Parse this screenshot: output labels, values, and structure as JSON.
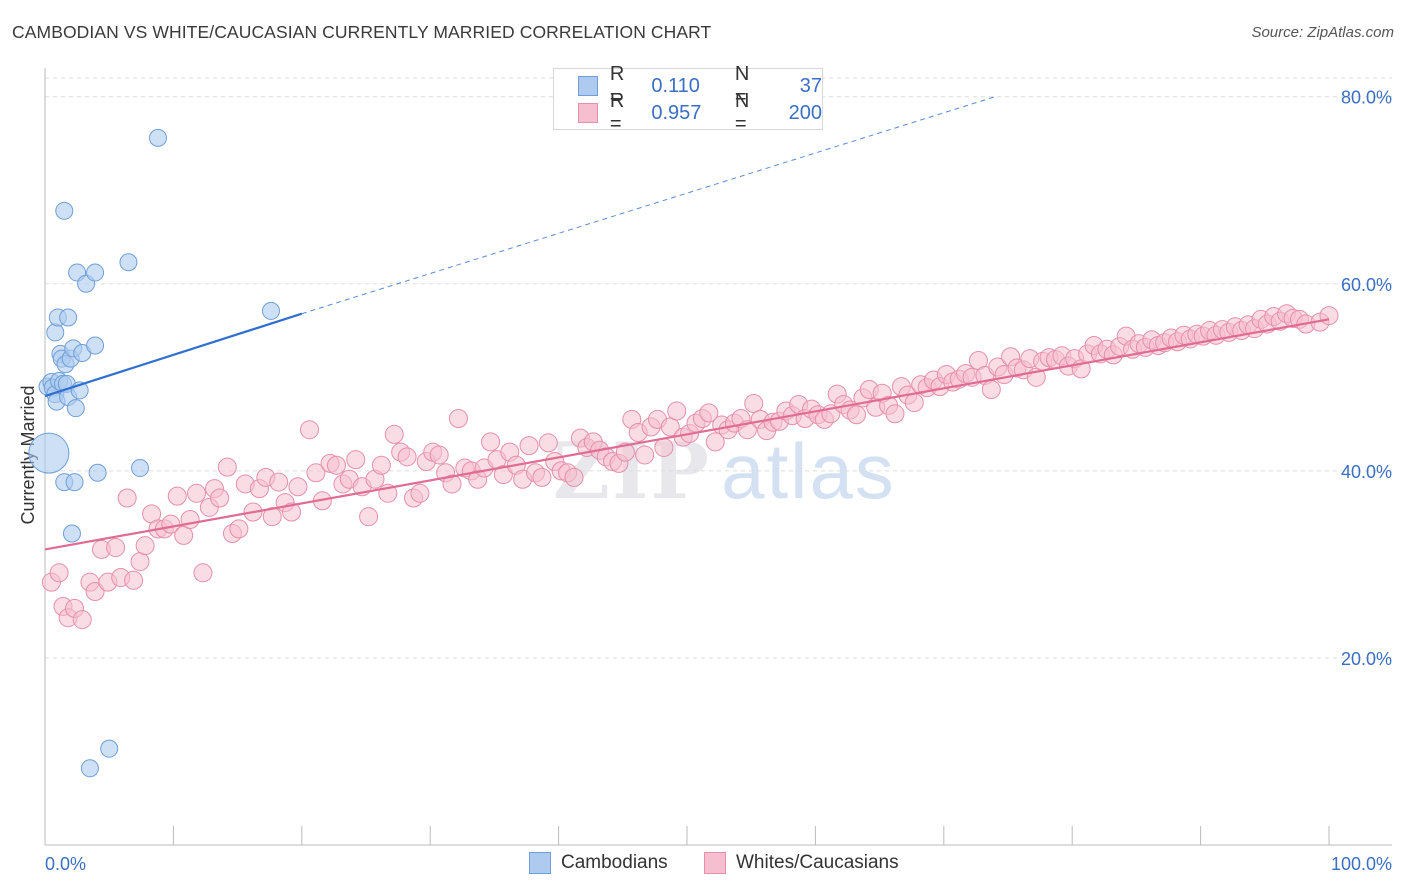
{
  "header": {
    "title": "CAMBODIAN VS WHITE/CAUCASIAN CURRENTLY MARRIED CORRELATION CHART",
    "source": "Source: ZipAtlas.com"
  },
  "watermark": {
    "zip": "ZIP",
    "atlas": "atlas"
  },
  "legend": {
    "r_label": "R =",
    "n_label": "N =",
    "rows": [
      {
        "r": "0.110",
        "n": "37",
        "color": "#aecbef",
        "border": "#6f9fd8",
        "text_color": "#3b6fc4"
      },
      {
        "r": "0.957",
        "n": "200",
        "color": "#f6bfd0",
        "border": "#e68fab",
        "text_color": "#3b6fc4"
      }
    ]
  },
  "bottom_legend": [
    {
      "label": "Cambodians",
      "color": "#aecbef",
      "border": "#6f9fd8"
    },
    {
      "label": "Whites/Caucasians",
      "color": "#f6bfd0",
      "border": "#e68fab"
    }
  ],
  "chart_data": {
    "type": "scatter",
    "title": "CAMBODIAN VS WHITE/CAUCASIAN CURRENTLY MARRIED CORRELATION CHART",
    "xlabel": "",
    "ylabel": "Currently Married",
    "xlim": [
      0,
      100
    ],
    "ylim": [
      0,
      82
    ],
    "x_tick_labels": [
      "0.0%",
      "100.0%"
    ],
    "y_ticks": [
      20,
      40,
      60,
      80
    ],
    "y_tick_labels": [
      "20.0%",
      "40.0%",
      "60.0%",
      "80.0%"
    ],
    "grid": true,
    "series": [
      {
        "name": "Cambodians",
        "color": "#aecbef",
        "stroke": "#6f9fd8",
        "line_color": "#2f6fcf",
        "trend": {
          "x0": 0,
          "y0": 48.0,
          "x1": 20,
          "y1": 56.8,
          "dash_to_x": 74,
          "dash_to_y": 80
        },
        "points": [
          [
            0.2,
            49.0,
            1
          ],
          [
            0.3,
            41.9,
            3
          ],
          [
            0.5,
            49.5,
            1
          ],
          [
            0.6,
            48.9,
            1
          ],
          [
            0.8,
            48.2,
            1
          ],
          [
            0.8,
            54.8,
            1
          ],
          [
            0.9,
            47.4,
            1
          ],
          [
            1.0,
            56.4,
            1
          ],
          [
            1.1,
            49.6,
            1
          ],
          [
            1.2,
            52.5,
            1
          ],
          [
            1.3,
            52.0,
            1
          ],
          [
            1.4,
            49.3,
            1
          ],
          [
            1.5,
            38.8,
            1
          ],
          [
            1.5,
            67.8,
            1
          ],
          [
            1.6,
            51.4,
            1
          ],
          [
            1.7,
            49.3,
            1
          ],
          [
            1.8,
            47.9,
            1
          ],
          [
            1.8,
            56.4,
            1
          ],
          [
            2.0,
            52.0,
            1
          ],
          [
            2.1,
            33.3,
            1
          ],
          [
            2.2,
            53.1,
            1
          ],
          [
            2.3,
            38.8,
            1
          ],
          [
            2.4,
            46.7,
            1
          ],
          [
            2.5,
            61.2,
            1
          ],
          [
            2.7,
            48.6,
            1
          ],
          [
            2.9,
            52.6,
            1
          ],
          [
            3.2,
            60.0,
            1
          ],
          [
            3.5,
            8.2,
            1
          ],
          [
            3.9,
            53.4,
            1
          ],
          [
            3.9,
            61.2,
            1
          ],
          [
            4.1,
            39.8,
            1
          ],
          [
            5.0,
            10.3,
            1
          ],
          [
            6.5,
            62.3,
            1
          ],
          [
            7.4,
            40.3,
            1
          ],
          [
            8.8,
            75.6,
            1
          ],
          [
            17.6,
            57.1,
            1
          ]
        ]
      },
      {
        "name": "Whites/Caucasians",
        "color": "#f6bfd0",
        "stroke": "#e68fab",
        "line_color": "#e06c94",
        "trend": {
          "x0": 0,
          "y0": 31.6,
          "x1": 100,
          "y1": 56.2
        },
        "points": [
          [
            0.5,
            28.1
          ],
          [
            1.1,
            29.1
          ],
          [
            1.4,
            25.5
          ],
          [
            1.8,
            24.3
          ],
          [
            2.3,
            25.3
          ],
          [
            2.9,
            24.1
          ],
          [
            3.5,
            28.1
          ],
          [
            3.9,
            27.1
          ],
          [
            4.4,
            31.6
          ],
          [
            4.9,
            28.1
          ],
          [
            5.5,
            31.8
          ],
          [
            5.9,
            28.6
          ],
          [
            6.4,
            37.1
          ],
          [
            6.9,
            28.3
          ],
          [
            7.4,
            30.3
          ],
          [
            7.8,
            32.0
          ],
          [
            8.3,
            35.4
          ],
          [
            8.8,
            33.8
          ],
          [
            9.3,
            33.8
          ],
          [
            9.8,
            34.3
          ],
          [
            10.3,
            37.3
          ],
          [
            10.8,
            33.1
          ],
          [
            11.3,
            34.8
          ],
          [
            11.8,
            37.6
          ],
          [
            12.3,
            29.1
          ],
          [
            12.8,
            36.1
          ],
          [
            13.2,
            38.1
          ],
          [
            13.6,
            37.1
          ],
          [
            14.2,
            40.4
          ],
          [
            14.6,
            33.3
          ],
          [
            15.1,
            33.8
          ],
          [
            15.6,
            38.6
          ],
          [
            16.2,
            35.6
          ],
          [
            16.7,
            38.1
          ],
          [
            17.2,
            39.3
          ],
          [
            17.7,
            35.1
          ],
          [
            18.2,
            38.8
          ],
          [
            18.7,
            36.6
          ],
          [
            19.2,
            35.6
          ],
          [
            19.7,
            38.3
          ],
          [
            20.6,
            44.4
          ],
          [
            21.1,
            39.8
          ],
          [
            21.6,
            36.8
          ],
          [
            22.2,
            40.8
          ],
          [
            22.7,
            40.6
          ],
          [
            23.2,
            38.6
          ],
          [
            23.7,
            39.1
          ],
          [
            24.2,
            41.2
          ],
          [
            24.7,
            38.3
          ],
          [
            25.2,
            35.1
          ],
          [
            25.7,
            39.1
          ],
          [
            26.2,
            40.6
          ],
          [
            26.7,
            37.6
          ],
          [
            27.2,
            43.9
          ],
          [
            27.7,
            42.0
          ],
          [
            28.2,
            41.5
          ],
          [
            28.7,
            37.1
          ],
          [
            29.2,
            37.6
          ],
          [
            29.7,
            41.0
          ],
          [
            30.2,
            42.0
          ],
          [
            30.7,
            41.7
          ],
          [
            31.2,
            39.8
          ],
          [
            31.7,
            38.6
          ],
          [
            32.2,
            45.6
          ],
          [
            32.7,
            40.3
          ],
          [
            33.2,
            40.0
          ],
          [
            33.7,
            39.1
          ],
          [
            34.2,
            40.3
          ],
          [
            34.7,
            43.1
          ],
          [
            35.2,
            41.2
          ],
          [
            35.7,
            39.6
          ],
          [
            36.2,
            42.0
          ],
          [
            36.7,
            40.6
          ],
          [
            37.2,
            39.1
          ],
          [
            37.7,
            42.7
          ],
          [
            38.2,
            39.8
          ],
          [
            38.7,
            39.3
          ],
          [
            39.2,
            43.0
          ],
          [
            39.7,
            41.0
          ],
          [
            40.2,
            40.0
          ],
          [
            40.7,
            39.8
          ],
          [
            41.2,
            39.3
          ],
          [
            41.7,
            43.5
          ],
          [
            42.2,
            42.5
          ],
          [
            42.7,
            43.1
          ],
          [
            43.2,
            42.2
          ],
          [
            43.7,
            41.5
          ],
          [
            44.2,
            41.0
          ],
          [
            44.7,
            40.8
          ],
          [
            45.2,
            42.0
          ],
          [
            45.7,
            45.5
          ],
          [
            46.2,
            44.1
          ],
          [
            46.7,
            41.7
          ],
          [
            47.2,
            44.7
          ],
          [
            47.7,
            45.5
          ],
          [
            48.2,
            42.5
          ],
          [
            48.7,
            44.7
          ],
          [
            49.2,
            46.4
          ],
          [
            49.7,
            43.6
          ],
          [
            50.2,
            44.0
          ],
          [
            50.7,
            45.1
          ],
          [
            51.2,
            45.6
          ],
          [
            51.7,
            46.2
          ],
          [
            52.2,
            43.1
          ],
          [
            52.7,
            44.9
          ],
          [
            53.2,
            44.4
          ],
          [
            53.7,
            45.1
          ],
          [
            54.2,
            45.6
          ],
          [
            54.7,
            44.4
          ],
          [
            55.2,
            47.2
          ],
          [
            55.7,
            45.5
          ],
          [
            56.2,
            44.3
          ],
          [
            56.7,
            45.2
          ],
          [
            57.2,
            45.3
          ],
          [
            57.7,
            46.4
          ],
          [
            58.2,
            45.9
          ],
          [
            58.7,
            47.1
          ],
          [
            59.2,
            45.6
          ],
          [
            59.7,
            46.6
          ],
          [
            60.2,
            46.0
          ],
          [
            60.7,
            45.5
          ],
          [
            61.2,
            46.1
          ],
          [
            61.7,
            48.2
          ],
          [
            62.2,
            47.1
          ],
          [
            62.7,
            46.5
          ],
          [
            63.2,
            46.0
          ],
          [
            63.7,
            47.8
          ],
          [
            64.2,
            48.7
          ],
          [
            64.7,
            46.8
          ],
          [
            65.2,
            48.3
          ],
          [
            65.7,
            47.0
          ],
          [
            66.2,
            46.1
          ],
          [
            66.7,
            49.0
          ],
          [
            67.2,
            48.1
          ],
          [
            67.7,
            47.3
          ],
          [
            68.2,
            49.2
          ],
          [
            68.7,
            48.9
          ],
          [
            69.2,
            49.7
          ],
          [
            69.7,
            49.0
          ],
          [
            70.2,
            50.3
          ],
          [
            70.7,
            49.5
          ],
          [
            71.2,
            49.8
          ],
          [
            71.7,
            50.4
          ],
          [
            72.2,
            50.0
          ],
          [
            72.7,
            51.8
          ],
          [
            73.2,
            50.2
          ],
          [
            73.7,
            48.7
          ],
          [
            74.2,
            51.1
          ],
          [
            74.7,
            50.3
          ],
          [
            75.2,
            52.2
          ],
          [
            75.7,
            51.0
          ],
          [
            76.2,
            50.8
          ],
          [
            76.7,
            52.0
          ],
          [
            77.2,
            50.0
          ],
          [
            77.7,
            51.7
          ],
          [
            78.2,
            52.1
          ],
          [
            78.7,
            51.9
          ],
          [
            79.2,
            52.3
          ],
          [
            79.7,
            51.2
          ],
          [
            80.2,
            52.0
          ],
          [
            80.7,
            50.9
          ],
          [
            81.2,
            52.5
          ],
          [
            81.7,
            53.4
          ],
          [
            82.2,
            52.5
          ],
          [
            82.7,
            53.0
          ],
          [
            83.2,
            52.4
          ],
          [
            83.7,
            53.3
          ],
          [
            84.2,
            54.4
          ],
          [
            84.7,
            53.0
          ],
          [
            85.2,
            53.6
          ],
          [
            85.7,
            53.2
          ],
          [
            86.2,
            54.0
          ],
          [
            86.7,
            53.4
          ],
          [
            87.2,
            53.7
          ],
          [
            87.7,
            54.2
          ],
          [
            88.2,
            53.8
          ],
          [
            88.7,
            54.5
          ],
          [
            89.2,
            54.1
          ],
          [
            89.7,
            54.6
          ],
          [
            90.2,
            54.4
          ],
          [
            90.7,
            55.0
          ],
          [
            91.2,
            54.5
          ],
          [
            91.7,
            55.1
          ],
          [
            92.2,
            54.8
          ],
          [
            92.7,
            55.4
          ],
          [
            93.2,
            55.0
          ],
          [
            93.7,
            55.6
          ],
          [
            94.2,
            55.2
          ],
          [
            94.7,
            56.2
          ],
          [
            95.2,
            55.7
          ],
          [
            95.7,
            56.5
          ],
          [
            96.2,
            56.0
          ],
          [
            96.7,
            56.8
          ],
          [
            97.2,
            56.3
          ],
          [
            97.7,
            56.2
          ],
          [
            98.2,
            55.7
          ],
          [
            99.3,
            55.9
          ],
          [
            100.0,
            56.6
          ]
        ]
      }
    ]
  }
}
